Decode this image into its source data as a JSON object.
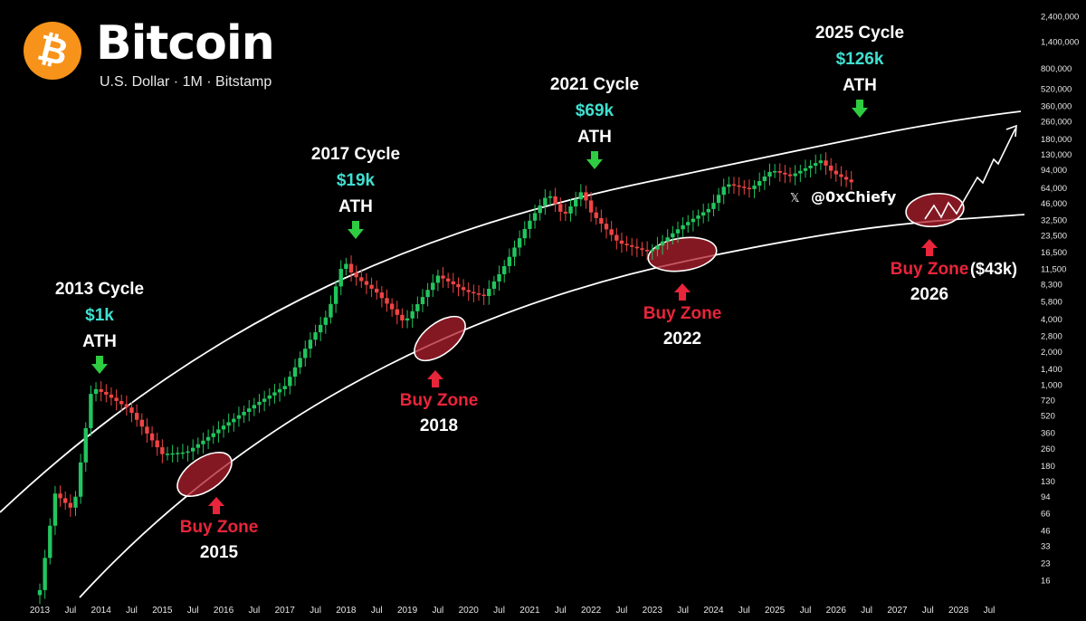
{
  "header": {
    "title": "Bitcoin",
    "logo_symbol": "₿",
    "subtitle": "U.S. Dollar · 1M · Bitstamp",
    "logo_color": "#F7931A"
  },
  "watermark": {
    "icon": "x-logo-icon",
    "label": "@0xChiefy"
  },
  "colors": {
    "up": "#22C55E",
    "down": "#EF4444",
    "ath_arrow": "#2ECC40",
    "buy_arrow": "#E8253B",
    "buy_text": "#E8253B",
    "ath_price": "#3FE0D0",
    "zone_fill": "#B0202E",
    "band": "#FFFFFF"
  },
  "chart_data": {
    "type": "candlestick",
    "y_scale": "log",
    "y_axis": {
      "ticks": [
        16,
        23,
        33,
        46,
        66,
        94,
        130,
        180,
        260,
        360,
        520,
        720,
        1000,
        1400,
        2000,
        2800,
        4000,
        5800,
        8300,
        11500,
        16500,
        23500,
        32500,
        46000,
        64000,
        94000,
        130000,
        180000,
        260000,
        360000,
        520000,
        800000,
        1400000,
        2400000
      ],
      "tick_labels": [
        "16",
        "23",
        "33",
        "46",
        "66",
        "94",
        "130",
        "180",
        "260",
        "360",
        "520",
        "720",
        "1,000",
        "1,400",
        "2,000",
        "2,800",
        "4,000",
        "5,800",
        "8,300",
        "11,500",
        "16,500",
        "23,500",
        "32,500",
        "46,000",
        "64,000",
        "94,000",
        "130,000",
        "180,000",
        "260,000",
        "360,000",
        "520,000",
        "800,000",
        "1,400,000",
        "2,400,000"
      ]
    },
    "x_axis": {
      "ticks": [
        2013.0,
        2013.5,
        2014.0,
        2014.5,
        2015.0,
        2015.5,
        2016.0,
        2016.5,
        2017.0,
        2017.5,
        2018.0,
        2018.5,
        2019.0,
        2019.5,
        2020.0,
        2020.5,
        2021.0,
        2021.5,
        2022.0,
        2022.5,
        2023.0,
        2023.5,
        2024.0,
        2024.5,
        2025.0,
        2025.5,
        2026.0,
        2026.5,
        2027.0,
        2027.5,
        2028.0,
        2028.5
      ],
      "tick_labels": [
        "2013",
        "Jul",
        "2014",
        "Jul",
        "2015",
        "Jul",
        "2016",
        "Jul",
        "2017",
        "Jul",
        "2018",
        "Jul",
        "2019",
        "Jul",
        "2020",
        "Jul",
        "2021",
        "Jul",
        "2022",
        "Jul",
        "2023",
        "Jul",
        "2024",
        "Jul",
        "2025",
        "Jul",
        "2026",
        "Jul",
        "2027",
        "Jul",
        "2028",
        "Jul"
      ]
    },
    "series": [
      {
        "type": "monthly-candles",
        "anchors": [
          [
            2013.0,
            13
          ],
          [
            2013.25,
            100
          ],
          [
            2013.55,
            70
          ],
          [
            2013.85,
            950
          ],
          [
            2014.1,
            800
          ],
          [
            2014.45,
            600
          ],
          [
            2015.0,
            230
          ],
          [
            2015.4,
            240
          ],
          [
            2015.75,
            330
          ],
          [
            2016.0,
            420
          ],
          [
            2016.5,
            650
          ],
          [
            2017.0,
            970
          ],
          [
            2017.4,
            2500
          ],
          [
            2017.7,
            4400
          ],
          [
            2017.96,
            14000
          ],
          [
            2018.1,
            10300
          ],
          [
            2018.5,
            7000
          ],
          [
            2018.95,
            3700
          ],
          [
            2019.5,
            10000
          ],
          [
            2019.95,
            7200
          ],
          [
            2020.25,
            6500
          ],
          [
            2020.55,
            11300
          ],
          [
            2020.95,
            29000
          ],
          [
            2021.3,
            57000
          ],
          [
            2021.55,
            35000
          ],
          [
            2021.85,
            60000
          ],
          [
            2022.0,
            38000
          ],
          [
            2022.45,
            20000
          ],
          [
            2022.95,
            16500
          ],
          [
            2023.5,
            29000
          ],
          [
            2023.95,
            42000
          ],
          [
            2024.2,
            70000
          ],
          [
            2024.6,
            62000
          ],
          [
            2024.95,
            93000
          ],
          [
            2025.25,
            82000
          ],
          [
            2025.75,
            114000
          ],
          [
            2025.95,
            88000
          ],
          [
            2026.25,
            72000
          ],
          [
            2026.3,
            69000
          ]
        ]
      }
    ],
    "bands": {
      "upper": "resistance curve",
      "lower": "support curve"
    },
    "annotations": [
      {
        "kind": "ath",
        "cycle": "2013 Cycle",
        "price": "$1k",
        "label": "ATH",
        "x": 2013.92,
        "y": 1160
      },
      {
        "kind": "ath",
        "cycle": "2017 Cycle",
        "price": "$19k",
        "label": "ATH",
        "x": 2017.96,
        "y": 19600
      },
      {
        "kind": "ath",
        "cycle": "2021 Cycle",
        "price": "$69k",
        "label": "ATH",
        "x": 2021.87,
        "y": 69000
      },
      {
        "kind": "ath",
        "cycle": "2025 Cycle",
        "price": "$126k",
        "label": "ATH",
        "x": 2025.77,
        "y": 126000
      },
      {
        "kind": "buy",
        "label": "Buy Zone",
        "year": "2015",
        "x": 2015.7,
        "y": 185
      },
      {
        "kind": "buy",
        "label": "Buy Zone",
        "year": "2018",
        "x": 2019.0,
        "y": 3400
      },
      {
        "kind": "buy",
        "label": "Buy Zone",
        "year": "2022",
        "x": 2023.3,
        "y": 16000
      },
      {
        "kind": "buy",
        "label": "Buy Zone",
        "year": "2026",
        "x": 2026.6,
        "y": 42000,
        "note": "($43k)"
      }
    ]
  }
}
